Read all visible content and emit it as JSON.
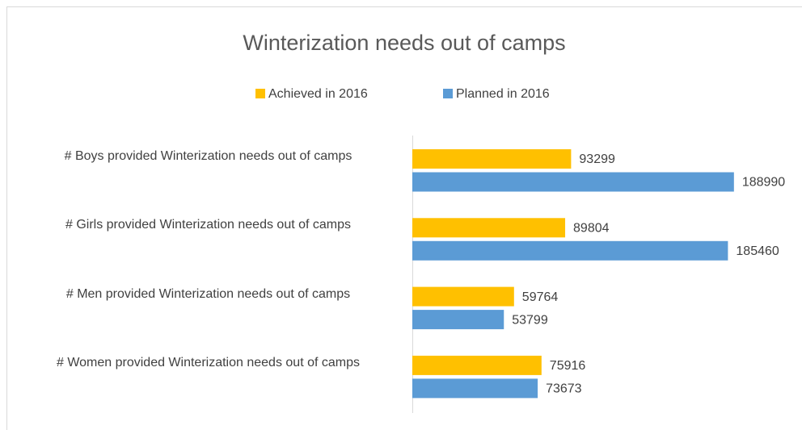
{
  "chart_data": {
    "type": "bar",
    "orientation": "horizontal",
    "title": "Winterization needs out of camps",
    "categories": [
      "# Boys  provided Winterization needs out of camps",
      "# Girls  provided Winterization needs out of camps",
      "# Men provided Winterization needs out of camps",
      "# Women provided Winterization needs out of camps"
    ],
    "series": [
      {
        "name": "Achieved in 2016",
        "color": "#ffc000",
        "values": [
          93299,
          89804,
          59764,
          75916
        ]
      },
      {
        "name": "Planned in 2016",
        "color": "#5b9bd5",
        "values": [
          188990,
          185460,
          53799,
          73673
        ]
      }
    ],
    "xlim": [
      0,
      200000
    ],
    "legend": "top"
  }
}
